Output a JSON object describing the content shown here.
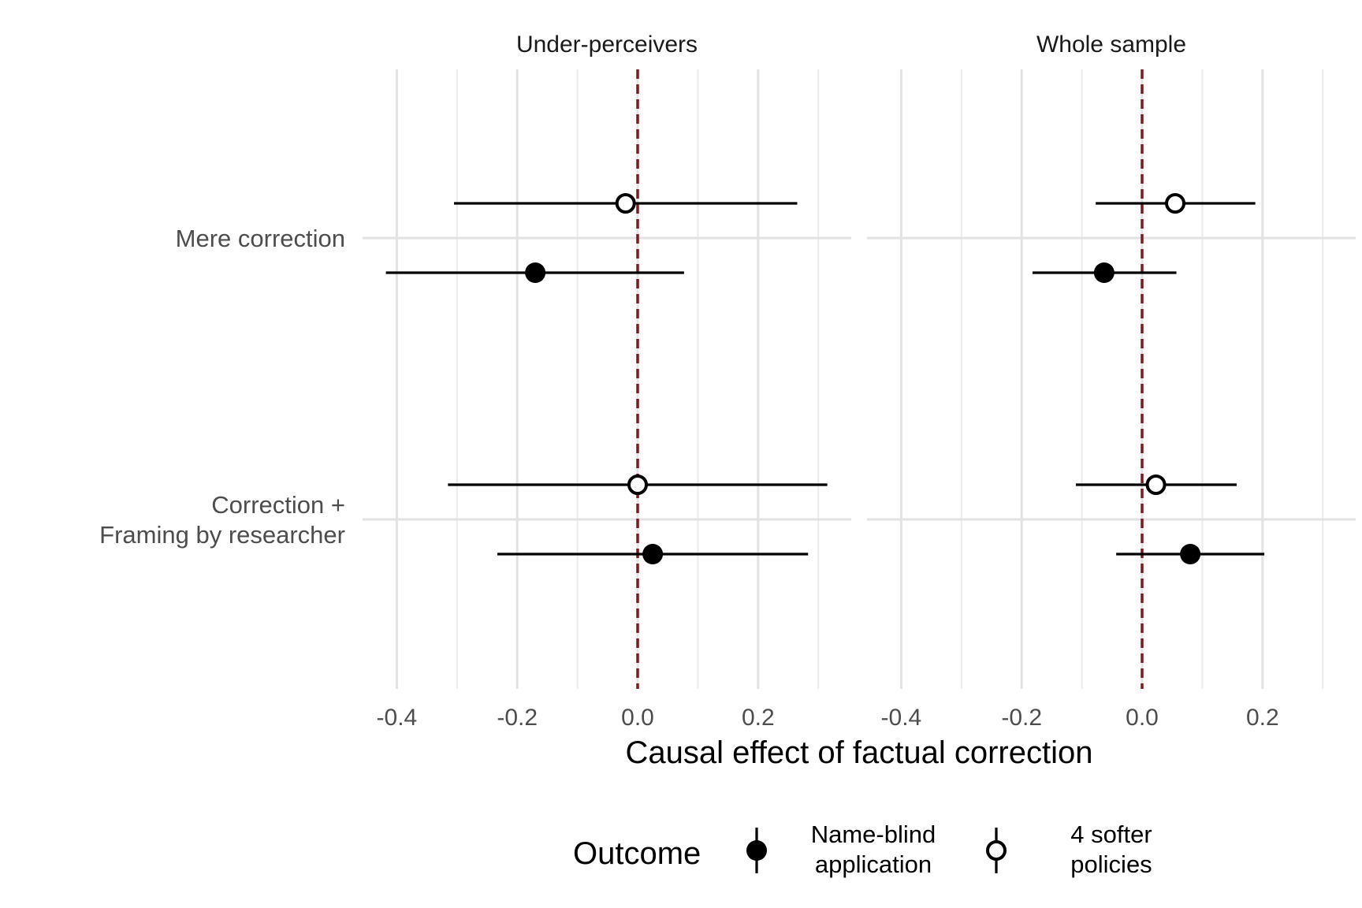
{
  "chart_data": {
    "type": "scatter",
    "subtype": "coefficient-plot-with-error-bars",
    "facets": [
      "Under-perceivers",
      "Whole sample"
    ],
    "categories": [
      {
        "lines": [
          "Mere correction"
        ]
      },
      {
        "lines": [
          "Correction +",
          "Framing by researcher"
        ]
      }
    ],
    "xlabel": "Causal effect of factual correction",
    "xlim": [
      -0.43,
      0.35
    ],
    "xticks": [
      -0.4,
      -0.2,
      0.0,
      0.2
    ],
    "xtick_labels": [
      "-0.4",
      "-0.2",
      "0.0",
      "0.2"
    ],
    "reference_line": {
      "x": 0,
      "style": "dashed",
      "color": "#7a1a22"
    },
    "grid": true,
    "legend": {
      "title": "Outcome",
      "position": "bottom",
      "entries": [
        {
          "key": "name_blind",
          "lines": [
            "Name-blind",
            "application"
          ],
          "marker": "filled-circle"
        },
        {
          "key": "softer",
          "lines": [
            "4 softer",
            "policies"
          ],
          "marker": "open-circle"
        }
      ]
    },
    "series": [
      {
        "key": "softer",
        "data": [
          {
            "facet": "Under-perceivers",
            "category": "Mere correction",
            "estimate": -0.02,
            "lower": -0.305,
            "upper": 0.265
          },
          {
            "facet": "Under-perceivers",
            "category": "Correction + Framing by researcher",
            "estimate": 0.0,
            "lower": -0.315,
            "upper": 0.315
          },
          {
            "facet": "Whole sample",
            "category": "Mere correction",
            "estimate": 0.055,
            "lower": -0.077,
            "upper": 0.188
          },
          {
            "facet": "Whole sample",
            "category": "Correction + Framing by researcher",
            "estimate": 0.023,
            "lower": -0.11,
            "upper": 0.157
          }
        ]
      },
      {
        "key": "name_blind",
        "data": [
          {
            "facet": "Under-perceivers",
            "category": "Mere correction",
            "estimate": -0.17,
            "lower": -0.418,
            "upper": 0.077
          },
          {
            "facet": "Under-perceivers",
            "category": "Correction + Framing by researcher",
            "estimate": 0.025,
            "lower": -0.233,
            "upper": 0.283
          },
          {
            "facet": "Whole sample",
            "category": "Mere correction",
            "estimate": -0.063,
            "lower": -0.182,
            "upper": 0.057
          },
          {
            "facet": "Whole sample",
            "category": "Correction + Framing by researcher",
            "estimate": 0.08,
            "lower": -0.043,
            "upper": 0.203
          }
        ]
      }
    ]
  }
}
